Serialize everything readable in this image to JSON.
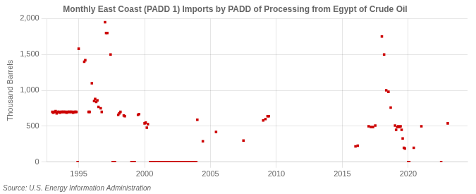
{
  "chart_data": {
    "type": "scatter",
    "title": "Monthly East Coast (PADD 1) Imports by PADD of Processing from Egypt of Crude Oil",
    "ylabel": "Thousand Barrels",
    "annotations": [
      "Source: U.S. Energy Information Administration"
    ],
    "color": "#cc0000",
    "marker": "square",
    "grid": true,
    "xlim": [
      1992.6,
      2024.5
    ],
    "ylim": [
      0,
      2000
    ],
    "xticks": [
      1995,
      2000,
      2005,
      2010,
      2015,
      2020
    ],
    "yticks": [
      0,
      500,
      {
        "value": 1000,
        "label": "1,000"
      },
      {
        "value": 1500,
        "label": "1,500"
      },
      {
        "value": 2000,
        "label": "2,000"
      }
    ],
    "x": [
      1993.0,
      1993.08,
      1993.17,
      1993.25,
      1993.33,
      1993.42,
      1993.5,
      1993.58,
      1993.67,
      1993.75,
      1993.83,
      1993.92,
      1994.0,
      1994.08,
      1994.17,
      1994.25,
      1994.33,
      1994.42,
      1994.5,
      1994.58,
      1994.67,
      1994.75,
      1994.83,
      1994.92,
      1995.0,
      1995.42,
      1995.5,
      1995.75,
      1995.83,
      1996.0,
      1996.17,
      1996.25,
      1996.33,
      1996.42,
      1996.5,
      1996.67,
      1996.75,
      1997.0,
      1997.08,
      1997.17,
      1997.42,
      1997.58,
      1997.67,
      1997.75,
      1998.0,
      1998.08,
      1998.17,
      1998.42,
      1998.5,
      1999.0,
      1999.08,
      1999.17,
      1999.25,
      1999.5,
      1999.58,
      2000.0,
      2000.08,
      2000.17,
      2000.25,
      2000.42,
      2000.5,
      2000.58,
      2000.67,
      2000.75,
      2000.83,
      2001.0,
      2001.08,
      2001.17,
      2001.25,
      2001.33,
      2001.42,
      2001.5,
      2001.58,
      2001.67,
      2001.75,
      2001.83,
      2001.92,
      2002.0,
      2002.08,
      2002.17,
      2002.25,
      2002.33,
      2002.42,
      2002.5,
      2002.58,
      2002.67,
      2002.75,
      2002.83,
      2002.92,
      2003.0,
      2003.08,
      2003.17,
      2003.25,
      2003.33,
      2003.42,
      2003.5,
      2003.58,
      2003.67,
      2003.75,
      2003.83,
      2003.92,
      2004.0,
      2004.42,
      2005.42,
      2007.5,
      2009.0,
      2009.17,
      2009.33,
      2009.42,
      2016.0,
      2016.17,
      2017.0,
      2017.17,
      2017.33,
      2017.5,
      2018.0,
      2018.17,
      2018.33,
      2018.5,
      2018.67,
      2019.0,
      2019.08,
      2019.17,
      2019.25,
      2019.33,
      2019.42,
      2019.5,
      2019.58,
      2019.67,
      2019.75,
      2020.0,
      2020.08,
      2020.42,
      2021.0,
      2022.5,
      2023.0
    ],
    "values": [
      700,
      690,
      700,
      710,
      680,
      700,
      700,
      690,
      700,
      700,
      700,
      700,
      700,
      690,
      700,
      700,
      700,
      700,
      700,
      690,
      700,
      700,
      700,
      0,
      1580,
      1400,
      1420,
      700,
      700,
      1100,
      850,
      880,
      840,
      860,
      770,
      750,
      700,
      1950,
      1800,
      1800,
      1500,
      0,
      0,
      0,
      660,
      680,
      700,
      650,
      640,
      0,
      0,
      0,
      0,
      660,
      670,
      540,
      550,
      480,
      530,
      0,
      0,
      0,
      0,
      0,
      0,
      0,
      0,
      0,
      0,
      0,
      0,
      0,
      0,
      0,
      0,
      0,
      0,
      0,
      0,
      0,
      0,
      0,
      0,
      0,
      0,
      0,
      0,
      0,
      0,
      0,
      0,
      0,
      0,
      0,
      0,
      0,
      0,
      0,
      0,
      0,
      0,
      590,
      290,
      420,
      300,
      580,
      600,
      640,
      640,
      220,
      230,
      500,
      490,
      490,
      510,
      1750,
      1500,
      1000,
      980,
      760,
      510,
      450,
      490,
      500,
      490,
      500,
      450,
      330,
      200,
      190,
      0,
      0,
      200,
      500,
      0,
      540
    ]
  }
}
